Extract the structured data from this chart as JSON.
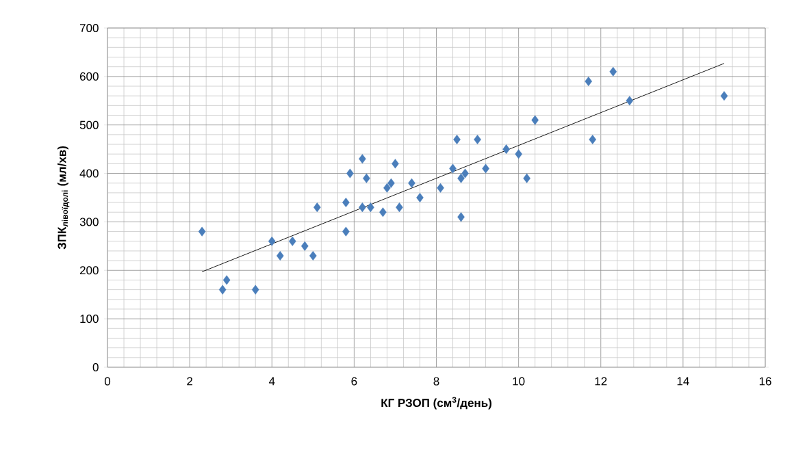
{
  "chart_data": {
    "type": "scatter",
    "xlabel": "КГ РЗОП (см$^{3}$/день)",
    "ylabel": "\\text{ЗПК}_{\\text{лівоїдолі}}\\text{ (мл/хв)}",
    "xlim": [
      0,
      16
    ],
    "ylim": [
      0,
      700
    ],
    "xticks": [
      0,
      2,
      4,
      6,
      8,
      10,
      12,
      14,
      16
    ],
    "yticks": [
      0,
      100,
      200,
      300,
      400,
      500,
      600,
      700
    ],
    "grid": true,
    "marker": "diamond",
    "series": [
      {
        "color": "#4a7ebb",
        "x": [
          2.3,
          2.8,
          2.9,
          3.6,
          4.0,
          4.2,
          4.5,
          4.8,
          5.0,
          5.1,
          5.8,
          5.8,
          5.9,
          6.2,
          6.2,
          6.3,
          6.4,
          6.7,
          6.8,
          6.9,
          7.0,
          7.1,
          7.4,
          7.6,
          8.1,
          8.4,
          8.5,
          8.6,
          8.6,
          8.7,
          9.0,
          9.2,
          9.7,
          10.0,
          10.2,
          10.4,
          11.7,
          11.8,
          12.3,
          12.7,
          15.0
        ],
        "values": [
          280,
          160,
          180,
          160,
          260,
          230,
          260,
          250,
          230,
          330,
          280,
          340,
          400,
          430,
          330,
          390,
          330,
          320,
          370,
          380,
          420,
          330,
          380,
          350,
          370,
          410,
          470,
          390,
          310,
          400,
          470,
          410,
          450,
          440,
          390,
          510,
          590,
          470,
          610,
          550,
          560
        ]
      },
      {
        "type": "line",
        "color": "#000000",
        "marker": "none",
        "x": [
          2.3,
          15.0
        ],
        "values": [
          197,
          627
        ]
      }
    ]
  }
}
